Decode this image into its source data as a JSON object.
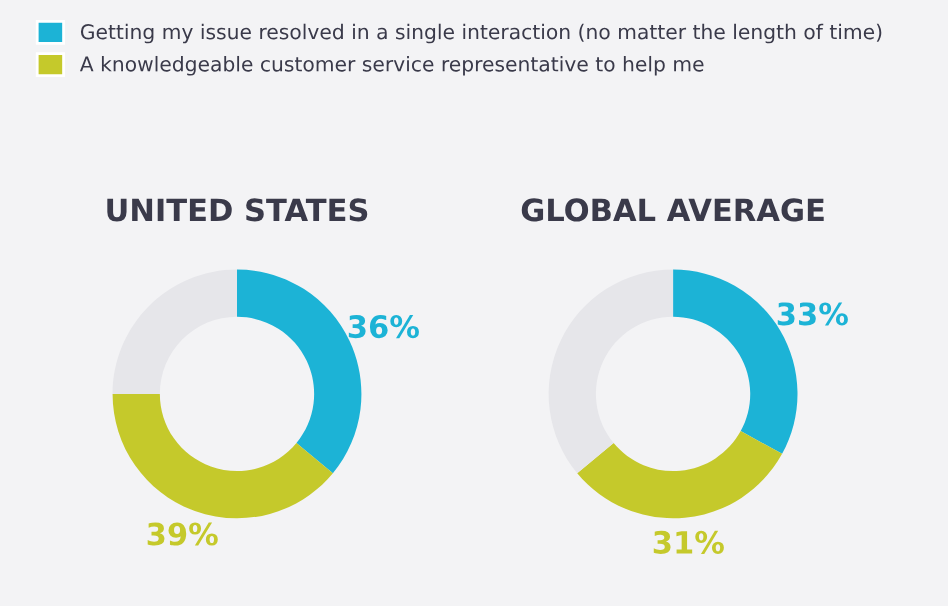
{
  "chart_data": [
    {
      "type": "donut",
      "title": "UNITED STATES",
      "categories": [
        "Getting my issue resolved in a single interaction (no matter the length of time)",
        "A knowledgeable customer service representative to help me",
        null
      ],
      "values": [
        36,
        39,
        25
      ],
      "colors": [
        "#1cb3d6",
        "#c5c92b",
        "#e6e6ea"
      ],
      "value_labels": [
        "36%",
        "39%",
        null
      ],
      "legend": "top"
    },
    {
      "type": "donut",
      "title": "GLOBAL AVERAGE",
      "categories": [
        null,
        null,
        null
      ],
      "values": [
        33,
        31,
        36
      ],
      "colors": [
        "#1cb3d6",
        "#c5c92b",
        "#e6e6ea"
      ],
      "value_labels": [
        "33%",
        "31%",
        null
      ]
    }
  ]
}
